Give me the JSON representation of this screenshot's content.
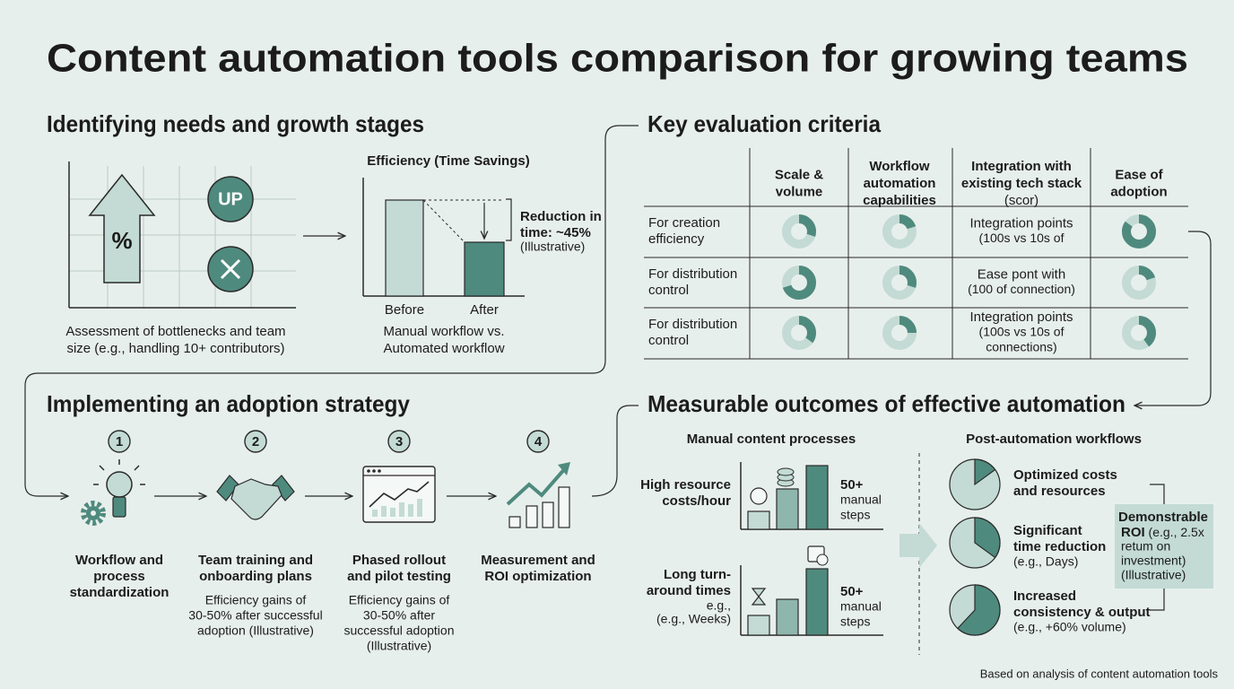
{
  "title": "Content automation tools comparison for growing teams",
  "needs": {
    "heading": "Identifying needs and growth stages",
    "icon_percent": "%",
    "icon_up": "UP",
    "caption": [
      "Assessment of bottlenecks and team",
      "size (e.g., handling 10+ contributors)"
    ],
    "chart_title": "Efficiency (Time Savings)",
    "bar_labels": [
      "Before",
      "After"
    ],
    "note": [
      "Reduction in",
      "time: ~45%",
      "(Illustrative)"
    ],
    "chart_caption": [
      "Manual workflow vs.",
      "Automated workflow"
    ]
  },
  "criteria": {
    "heading": "Key evaluation criteria",
    "columns": [
      [
        "Scale &",
        "volume"
      ],
      [
        "Workflow",
        "automation",
        "capabilities"
      ],
      [
        "Integration with",
        "existing tech stack",
        "(scor)"
      ],
      [
        "Ease of",
        "adoption"
      ]
    ],
    "rows": [
      {
        "label": [
          "For creation",
          "efficiency"
        ],
        "integration": [
          "Integration points",
          "(100s vs 10s of"
        ]
      },
      {
        "label": [
          "For distribution",
          "control"
        ],
        "integration": [
          "Ease pont with",
          "(100 of connection)"
        ]
      },
      {
        "label": [
          "For distribution",
          "control"
        ],
        "integration": [
          "Integration points",
          "(100s vs 10s of",
          "connections)"
        ]
      }
    ]
  },
  "adoption": {
    "heading": "Implementing an adoption strategy",
    "steps": [
      {
        "number": "1",
        "title": [
          "Workflow and",
          "process",
          "standardization"
        ],
        "note": []
      },
      {
        "number": "2",
        "title": [
          "Team training and",
          "onboarding plans"
        ],
        "note": [
          "Efficiency gains of",
          "30-50% after successful",
          "adoption (Illustrative)"
        ]
      },
      {
        "number": "3",
        "title": [
          "Phased rollout",
          "and pilot testing"
        ],
        "note": [
          "Efficiency gains of",
          "30-50% after",
          "successful adoption",
          "(Illustrative)"
        ]
      },
      {
        "number": "4",
        "title": [
          "Measurement and",
          "ROI optimization"
        ],
        "note": []
      }
    ]
  },
  "outcomes": {
    "heading": "Measurable outcomes of effective automation",
    "manual_title": "Manual content processes",
    "post_title": "Post-automation workflows",
    "manual_rows": [
      {
        "label_bold": [
          "High resource",
          "costs/hour"
        ],
        "label": [],
        "steps": [
          "50+",
          "manual",
          "steps"
        ]
      },
      {
        "label_bold": [
          "Long turn-",
          "around times"
        ],
        "label": [
          "e.g.,",
          "(e.g., Weeks)"
        ],
        "steps": [
          "50+",
          "manual",
          "steps"
        ]
      }
    ],
    "post_items": [
      {
        "title": [
          "Optimized costs",
          "and resources"
        ],
        "detail": []
      },
      {
        "title": [
          "Significant",
          "time reduction"
        ],
        "detail": [
          "(e.g., Days)"
        ]
      },
      {
        "title": [
          "Increased",
          "consistency & output"
        ],
        "detail": [
          "(e.g., +60% volume)"
        ]
      }
    ],
    "roi": {
      "title": "Demonstrable",
      "strong": "ROI",
      "rest": " (e.g., 2.5x",
      "lines": [
        "retum on",
        "investment)",
        "(Illustrative)"
      ]
    }
  },
  "footer": "Based on analysis of content automation tools"
}
